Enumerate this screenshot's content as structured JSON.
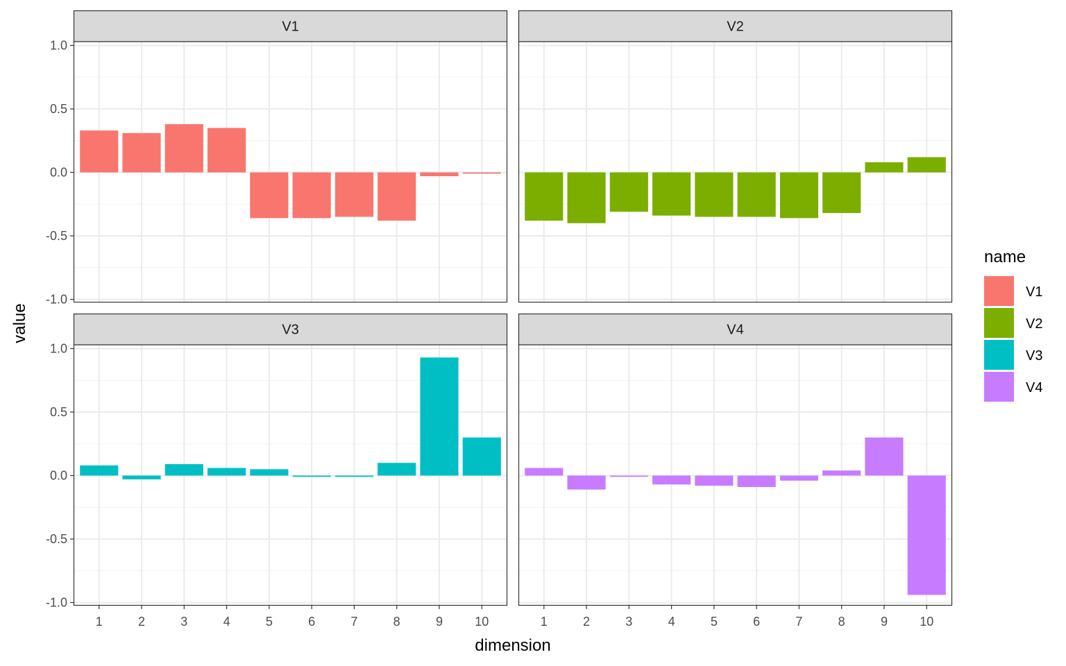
{
  "chart_data": {
    "type": "bar",
    "facet_layout": "2x2",
    "xlabel": "dimension",
    "ylabel": "value",
    "ylim": [
      -1.0,
      1.0
    ],
    "y_ticks": [
      1.0,
      0.5,
      0.0,
      -0.5,
      -1.0
    ],
    "y_tick_labels": [
      "1.0",
      "0.5",
      "0.0",
      "-0.5",
      "-1.0"
    ],
    "categories": [
      "1",
      "2",
      "3",
      "4",
      "5",
      "6",
      "7",
      "8",
      "9",
      "10"
    ],
    "grid": true,
    "legend": {
      "title": "name",
      "placement": "right",
      "entries": [
        {
          "label": "V1",
          "color": "#F8766D"
        },
        {
          "label": "V2",
          "color": "#7CAE00"
        },
        {
          "label": "V3",
          "color": "#00BFC4"
        },
        {
          "label": "V4",
          "color": "#C77CFF"
        }
      ]
    },
    "series": [
      {
        "name": "V1",
        "color": "#F8766D",
        "values": [
          0.33,
          0.31,
          0.38,
          0.35,
          -0.36,
          -0.36,
          -0.35,
          -0.38,
          -0.03,
          -0.01
        ]
      },
      {
        "name": "V2",
        "color": "#7CAE00",
        "values": [
          -0.38,
          -0.4,
          -0.31,
          -0.34,
          -0.35,
          -0.35,
          -0.36,
          -0.32,
          0.08,
          0.12
        ]
      },
      {
        "name": "V3",
        "color": "#00BFC4",
        "values": [
          0.08,
          -0.03,
          0.09,
          0.06,
          0.05,
          -0.01,
          -0.01,
          0.1,
          0.93,
          0.3
        ]
      },
      {
        "name": "V4",
        "color": "#C77CFF",
        "values": [
          0.06,
          -0.11,
          -0.01,
          -0.07,
          -0.08,
          -0.09,
          -0.04,
          0.04,
          0.3,
          -0.94
        ]
      }
    ]
  }
}
